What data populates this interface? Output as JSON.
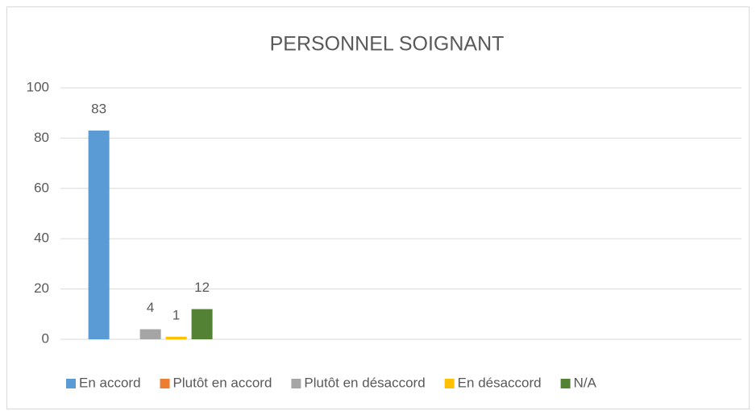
{
  "chart_data": {
    "type": "bar",
    "title": "PERSONNEL SOIGNANT",
    "categories": [
      null,
      null,
      null,
      null
    ],
    "series": [
      {
        "name": "En accord",
        "color": "#5b9bd5",
        "values": [
          83,
          null,
          null,
          null
        ]
      },
      {
        "name": "Plutôt en accord",
        "color": "#ed7d31",
        "values": [
          null,
          null,
          null,
          null
        ]
      },
      {
        "name": "Plutôt en désaccord",
        "color": "#a5a5a5",
        "values": [
          4,
          null,
          null,
          null
        ]
      },
      {
        "name": "En désaccord",
        "color": "#ffc000",
        "values": [
          1,
          null,
          null,
          null
        ]
      },
      {
        "name": "N/A",
        "color": "#548235",
        "values": [
          12,
          null,
          null,
          null
        ]
      }
    ],
    "ylim": [
      0,
      100
    ],
    "yticks": [
      0,
      20,
      40,
      60,
      80,
      100
    ],
    "grid": true,
    "legend": "bottom"
  }
}
